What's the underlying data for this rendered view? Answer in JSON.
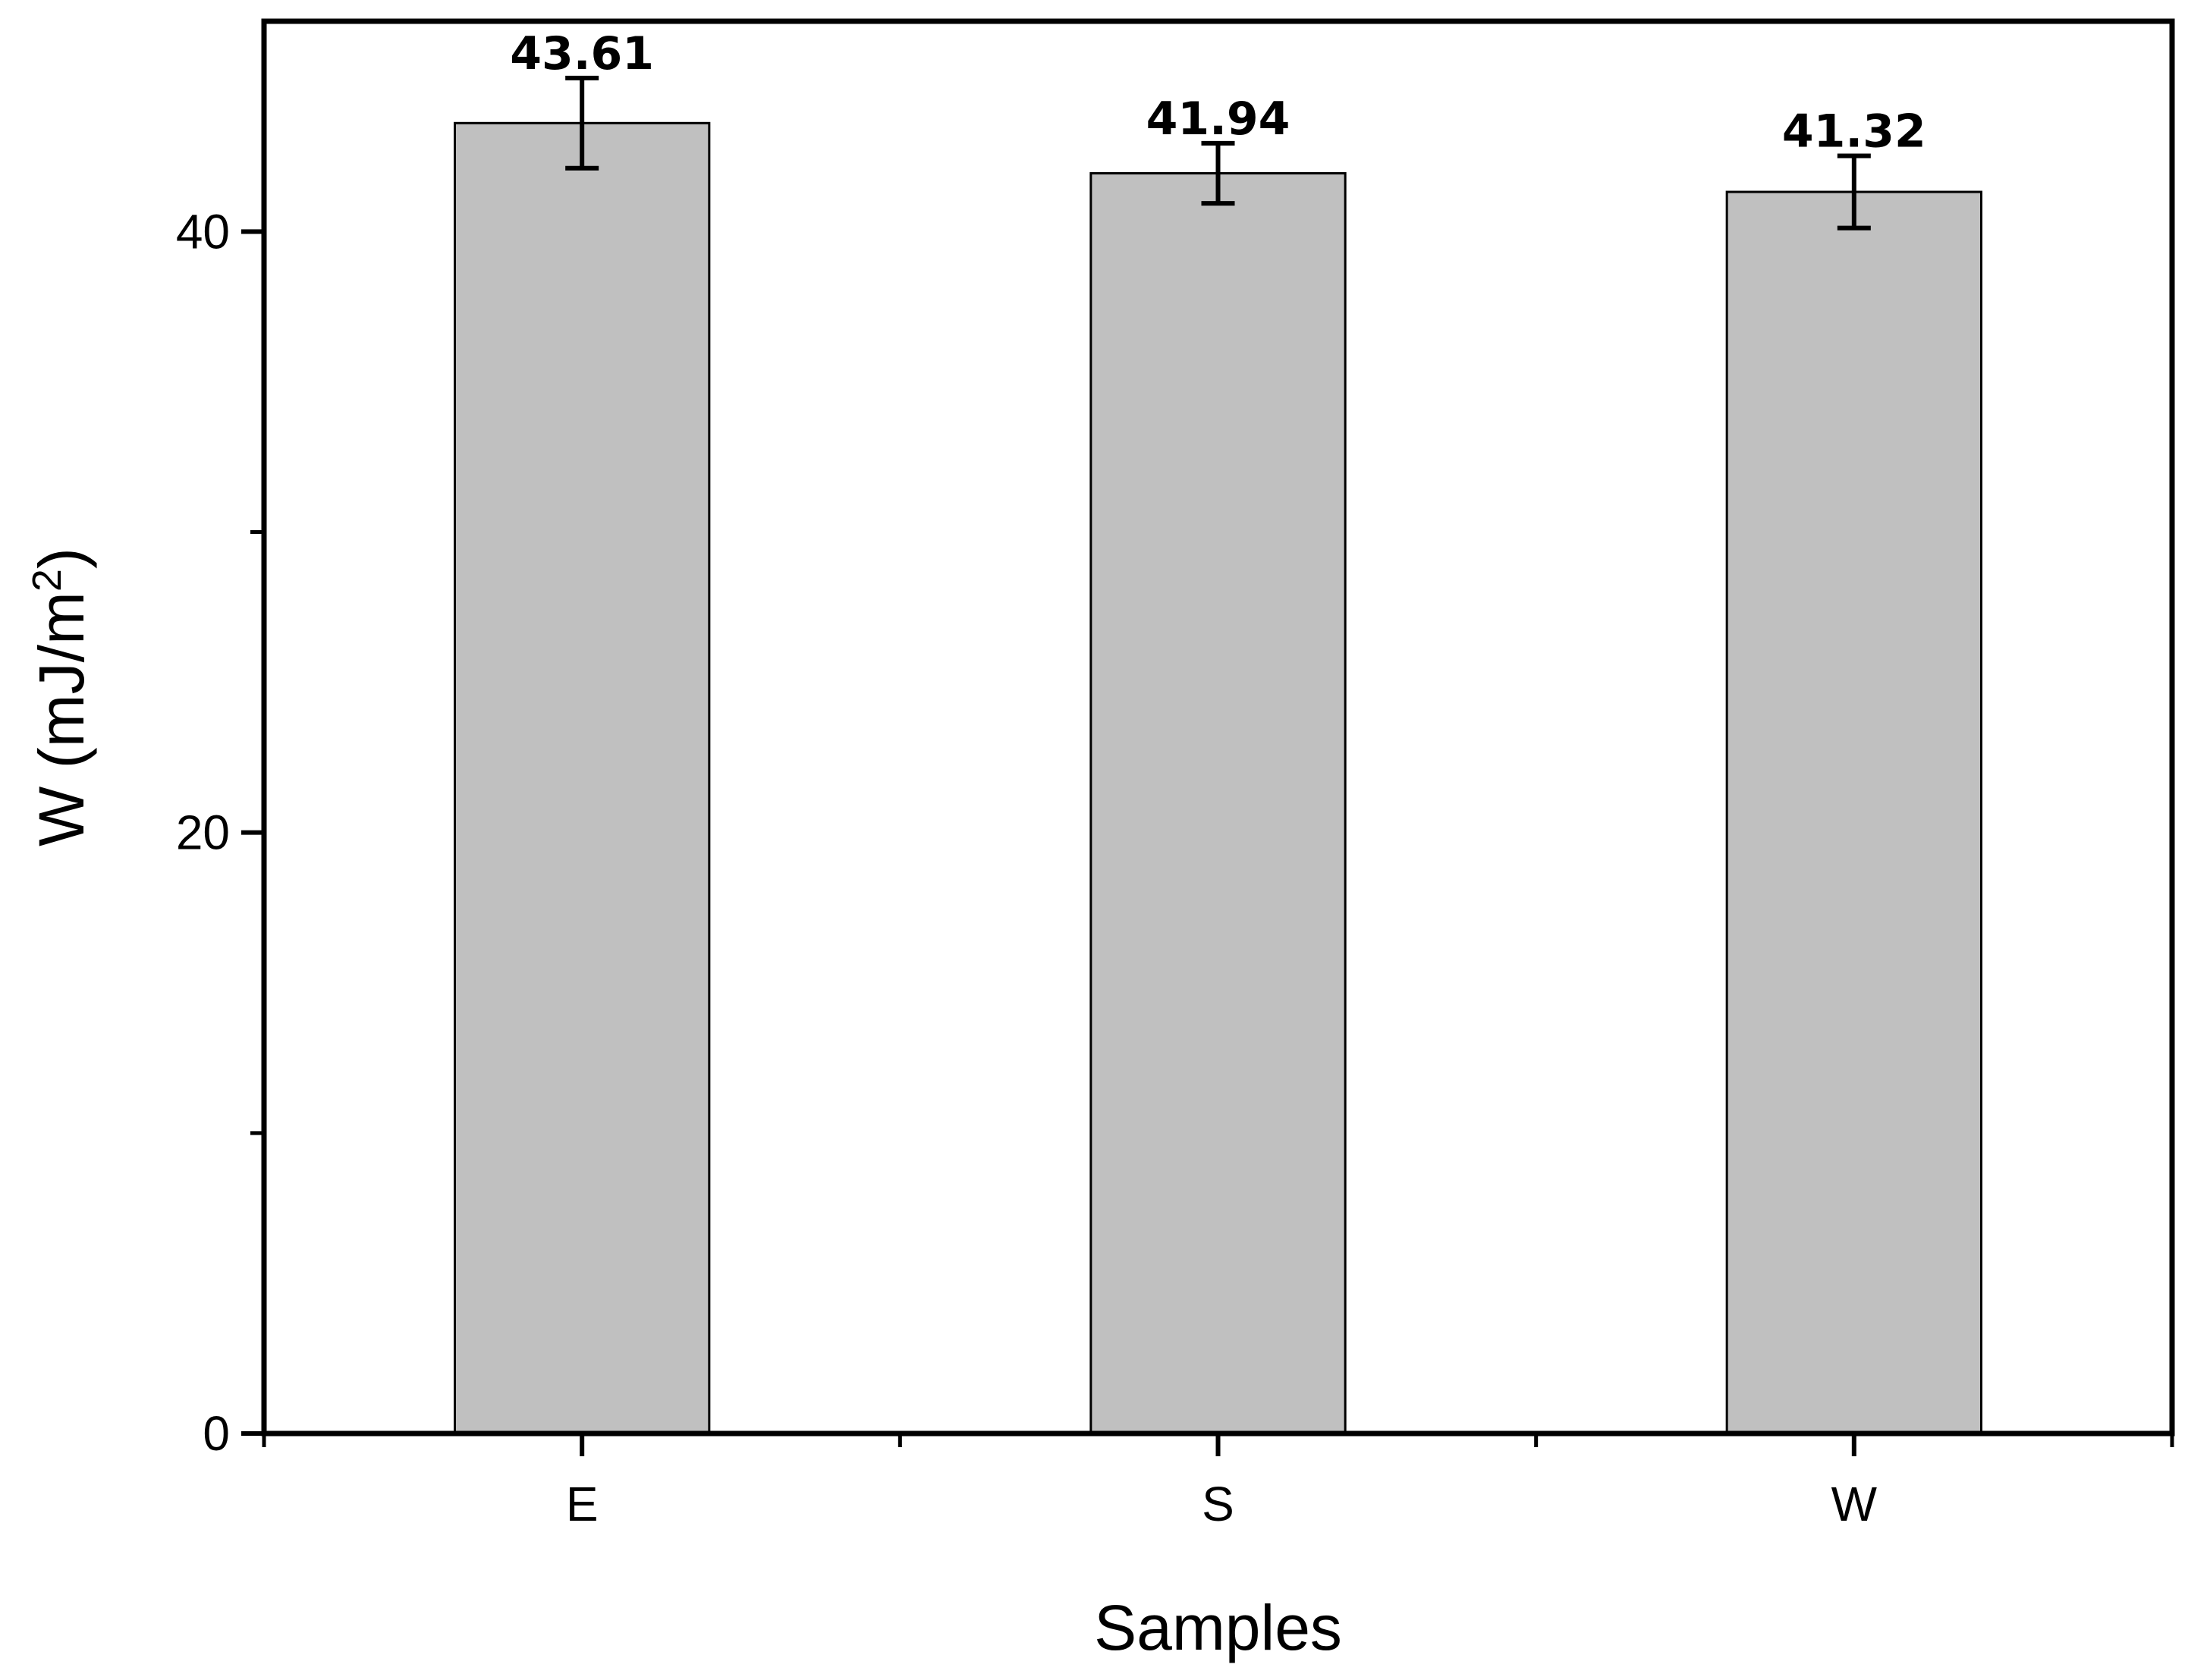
{
  "chart_data": {
    "type": "bar",
    "categories": [
      "E",
      "S",
      "W"
    ],
    "values": [
      43.61,
      41.94,
      41.32
    ],
    "errors": [
      1.5,
      1.0,
      1.2
    ],
    "data_labels": [
      "43.61",
      "41.94",
      "41.32"
    ],
    "title": "",
    "xlabel": "Samples",
    "ylabel": "W (mJ/m",
    "ylabel_superscript": "2",
    "ylabel_suffix": ")",
    "ylim": [
      0,
      47
    ],
    "yticks": [
      0,
      20,
      40
    ],
    "ytick_labels": [
      "0",
      "20",
      "40"
    ],
    "bar_color": "#c0c0c0",
    "bar_edge_color": "#000000",
    "grid": false,
    "legend": "none"
  }
}
